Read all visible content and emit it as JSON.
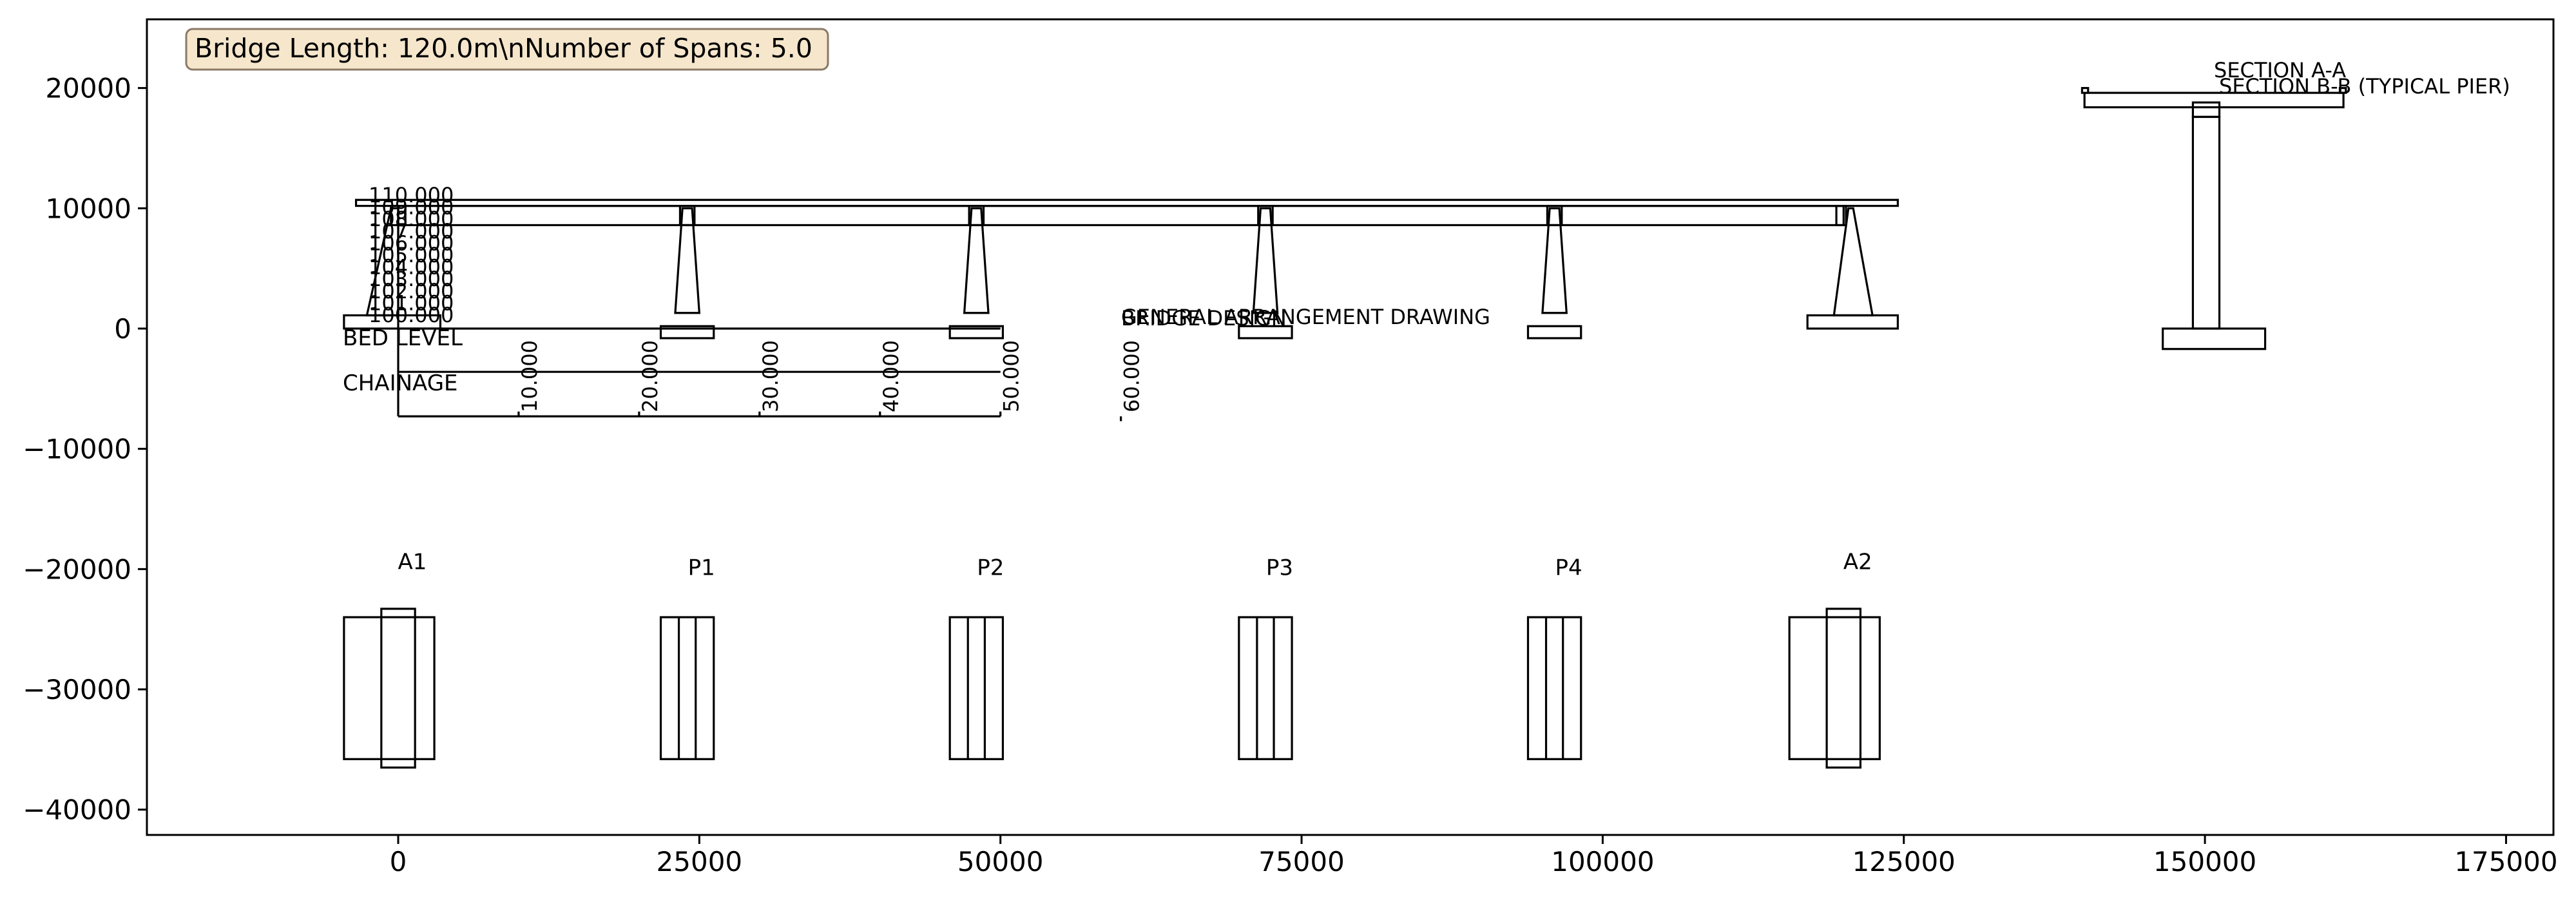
{
  "info_box": {
    "text": "Bridge Length: 120.0m\\nNumber of Spans: 5.0",
    "bg_color": "#f5e6cc",
    "border_color": "#8a7a66"
  },
  "axes": {
    "xlim": [
      -21000,
      178000
    ],
    "ylim": [
      -42000,
      25800
    ],
    "x_ticks": [
      0,
      25000,
      50000,
      75000,
      100000,
      125000,
      150000,
      175000
    ],
    "x_tick_labels": [
      "0",
      "25000",
      "50000",
      "75000",
      "100000",
      "125000",
      "150000",
      "175000"
    ],
    "y_ticks": [
      20000,
      10000,
      0,
      -10000,
      -20000,
      -30000,
      -40000
    ],
    "y_tick_labels": [
      "20000",
      "10000",
      "0",
      "−10000",
      "−20000",
      "−30000",
      "−40000"
    ]
  },
  "titles": {
    "general_arrangement": "GENERAL ARRANGEMENT DRAWING",
    "bridge_design": "BRIDGE DESIGN",
    "section_a": "SECTION A-A",
    "section_b": "SECTION B-B (TYPICAL PIER)"
  },
  "labels": {
    "bed_level": "BED LEVEL",
    "chainage": "CHAINAGE"
  },
  "level_labels": [
    "100.000",
    "101.000",
    "102.000",
    "103.000",
    "104.000",
    "105.000",
    "106.000",
    "107.000",
    "108.000",
    "109.000",
    "110.000"
  ],
  "chainage_labels": [
    "10.000",
    "20.000",
    "30.000",
    "40.000",
    "50.000",
    "60.000"
  ],
  "supports": [
    {
      "name": "A1",
      "x": 0,
      "type": "abutment"
    },
    {
      "name": "P1",
      "x": 24000,
      "type": "pier"
    },
    {
      "name": "P2",
      "x": 48000,
      "type": "pier"
    },
    {
      "name": "P3",
      "x": 72000,
      "type": "pier"
    },
    {
      "name": "P4",
      "x": 96000,
      "type": "pier"
    },
    {
      "name": "A2",
      "x": 120000,
      "type": "abutment"
    }
  ]
}
